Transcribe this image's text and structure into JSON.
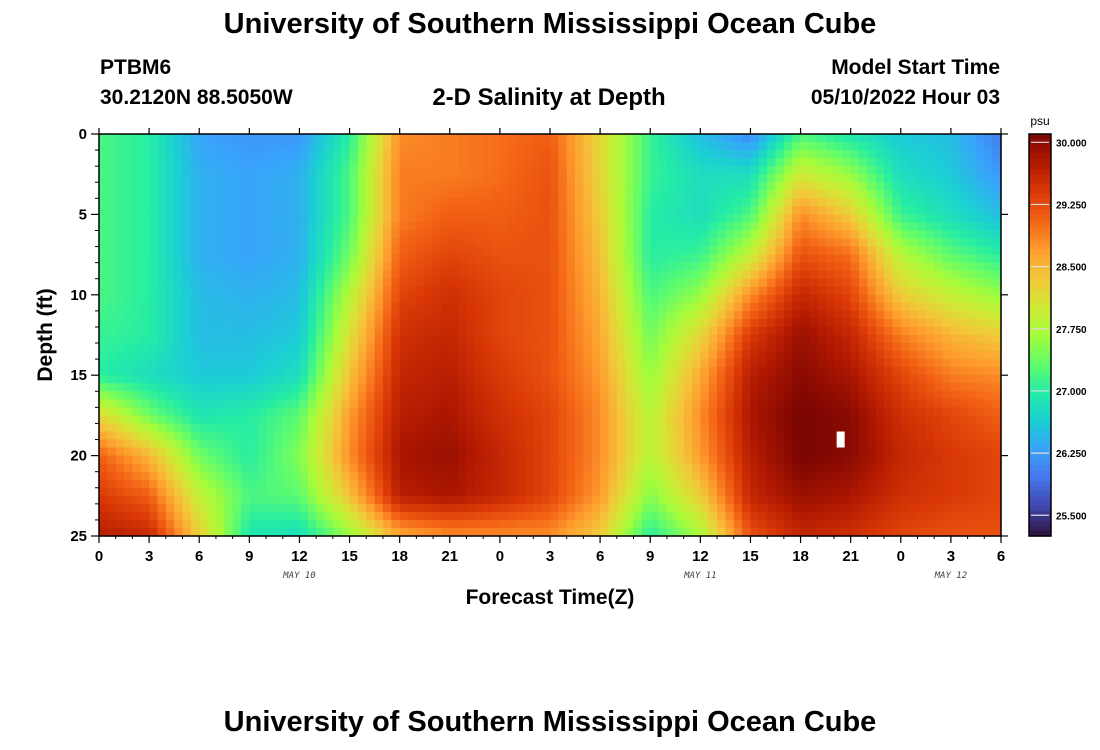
{
  "header": {
    "title": "University of Southern Mississippi Ocean Cube",
    "station": "PTBM6",
    "coords": "30.2120N  88.5050W",
    "plot_title": "2-D Salinity at Depth",
    "start_label": "Model Start Time",
    "start_value": "05/10/2022 Hour 03"
  },
  "footer": {
    "title": "University of Southern Mississippi Ocean Cube"
  },
  "chart_data": {
    "type": "heatmap",
    "title": "2-D Salinity at Depth",
    "xlabel": "Forecast Time(Z)",
    "ylabel": "Depth (ft)",
    "x_range_hours": [
      0,
      54
    ],
    "y_range_ft": [
      0,
      25
    ],
    "x_ticks": [
      "0",
      "3",
      "6",
      "9",
      "12",
      "15",
      "18",
      "21",
      "0",
      "3",
      "6",
      "9",
      "12",
      "15",
      "18",
      "21",
      "0",
      "3",
      "6"
    ],
    "y_ticks": [
      "0",
      "5",
      "10",
      "15",
      "20",
      "25"
    ],
    "date_labels": [
      {
        "label": "MAY 10",
        "hour": 12
      },
      {
        "label": "MAY 11",
        "hour": 36
      },
      {
        "label": "MAY 12",
        "hour": 51
      }
    ],
    "colorbar": {
      "unit": "psu",
      "min": 25.25,
      "max": 30.1,
      "tick_labels": [
        "30.000",
        "29.250",
        "28.500",
        "27.750",
        "27.000",
        "26.250",
        "25.500"
      ],
      "tick_values": [
        30.0,
        29.25,
        28.5,
        27.75,
        27.0,
        26.25,
        25.5
      ],
      "colors": [
        "#30123b",
        "#4145ab",
        "#4675ed",
        "#39a2fc",
        "#1bcfd4",
        "#24eca6",
        "#61fc6c",
        "#a4fc3b",
        "#d1e834",
        "#f3c63a",
        "#fe9b2d",
        "#f36315",
        "#d93806",
        "#b11901",
        "#7a0402"
      ]
    },
    "grid": {
      "time_hours": [
        0,
        3,
        6,
        9,
        12,
        15,
        18,
        21,
        24,
        27,
        30,
        33,
        36,
        39,
        42,
        45,
        48,
        51,
        54
      ],
      "depth_ft": [
        0,
        2.5,
        5,
        7.5,
        10,
        12.5,
        15,
        17.5,
        20,
        22.5,
        25
      ],
      "salinity_psu": [
        [
          27.2,
          27.0,
          26.3,
          26.2,
          26.2,
          27.0,
          28.8,
          28.9,
          29.0,
          29.1,
          28.2,
          27.1,
          26.5,
          26.1,
          27.2,
          26.9,
          26.6,
          26.5,
          26.0
        ],
        [
          27.2,
          27.0,
          26.4,
          26.3,
          26.4,
          27.2,
          28.9,
          28.9,
          29.0,
          29.2,
          28.2,
          27.1,
          26.8,
          26.8,
          28.0,
          27.6,
          26.8,
          26.6,
          26.2
        ],
        [
          27.2,
          27.0,
          26.4,
          26.3,
          26.4,
          27.2,
          28.9,
          29.1,
          29.1,
          29.2,
          28.3,
          27.0,
          26.8,
          27.2,
          28.8,
          28.3,
          27.1,
          26.8,
          26.5
        ],
        [
          27.2,
          27.0,
          26.4,
          26.3,
          26.4,
          27.4,
          29.1,
          29.3,
          29.2,
          29.2,
          28.4,
          27.0,
          27.1,
          27.9,
          29.2,
          29.0,
          27.8,
          27.3,
          27.0
        ],
        [
          27.2,
          27.0,
          26.5,
          26.4,
          26.5,
          27.8,
          29.3,
          29.5,
          29.3,
          29.2,
          28.5,
          27.2,
          27.6,
          28.8,
          29.6,
          29.3,
          28.3,
          27.9,
          27.6
        ],
        [
          27.1,
          27.0,
          26.5,
          26.5,
          26.6,
          28.1,
          29.5,
          29.6,
          29.3,
          29.2,
          28.6,
          27.4,
          28.2,
          29.4,
          29.9,
          29.6,
          28.9,
          28.5,
          28.3
        ],
        [
          27.0,
          26.8,
          26.6,
          26.6,
          26.8,
          28.4,
          29.6,
          29.7,
          29.4,
          29.2,
          28.7,
          27.6,
          28.6,
          29.7,
          30.0,
          29.8,
          29.3,
          28.9,
          28.8
        ],
        [
          28.2,
          27.4,
          26.9,
          27.0,
          27.3,
          28.7,
          29.7,
          29.8,
          29.5,
          29.3,
          28.8,
          27.8,
          28.8,
          29.8,
          30.1,
          30.0,
          29.5,
          29.3,
          29.1
        ],
        [
          29.1,
          28.5,
          27.4,
          27.0,
          27.5,
          28.8,
          29.8,
          29.9,
          29.6,
          29.3,
          28.8,
          27.8,
          28.7,
          29.7,
          30.1,
          30.0,
          29.6,
          29.4,
          29.3
        ],
        [
          29.4,
          29.1,
          27.9,
          27.2,
          27.3,
          28.4,
          29.7,
          29.8,
          29.6,
          29.3,
          28.7,
          27.5,
          28.3,
          29.6,
          29.9,
          29.8,
          29.5,
          29.4,
          29.3
        ],
        [
          29.7,
          29.6,
          28.3,
          26.9,
          26.8,
          27.6,
          28.6,
          28.8,
          28.8,
          28.8,
          28.3,
          27.0,
          27.7,
          29.2,
          29.6,
          29.5,
          29.3,
          29.2,
          29.2
        ]
      ]
    },
    "marker": {
      "hour": 44.4,
      "depth_ft": 19
    }
  }
}
